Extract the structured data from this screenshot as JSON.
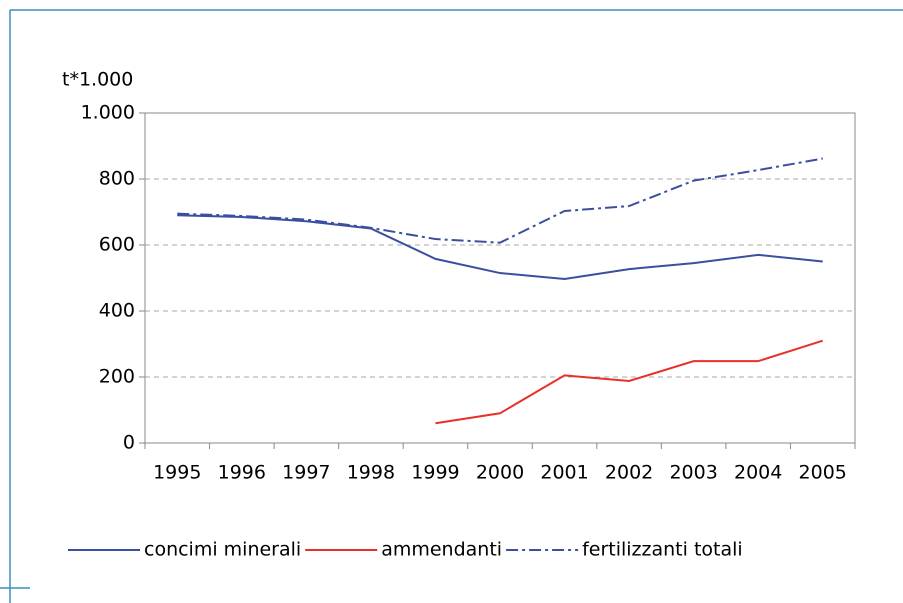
{
  "chart_data": {
    "type": "line",
    "ylabel": "t*1.000",
    "categories": [
      "1995",
      "1996",
      "1997",
      "1998",
      "1999",
      "2000",
      "2001",
      "2002",
      "2003",
      "2004",
      "2005"
    ],
    "series": [
      {
        "name": "concimi minerali",
        "color": "#3a4fa0",
        "style": "solid",
        "values": [
          690,
          685,
          672,
          650,
          558,
          515,
          497,
          527,
          545,
          570,
          550
        ]
      },
      {
        "name": "ammendanti",
        "color": "#e8302a",
        "style": "solid",
        "values": [
          null,
          null,
          null,
          null,
          60,
          90,
          205,
          188,
          248,
          248,
          310
        ]
      },
      {
        "name": "fertilizzanti totali",
        "color": "#3a4fa0",
        "style": "dash-dot",
        "values": [
          695,
          688,
          677,
          652,
          618,
          607,
          703,
          718,
          795,
          827,
          862
        ]
      }
    ],
    "ylim": [
      0,
      1000
    ],
    "yticks": [
      0,
      200,
      400,
      600,
      800,
      {
        "value": 1000,
        "label": "1.000"
      }
    ],
    "grid": true,
    "legend": "bottom"
  }
}
